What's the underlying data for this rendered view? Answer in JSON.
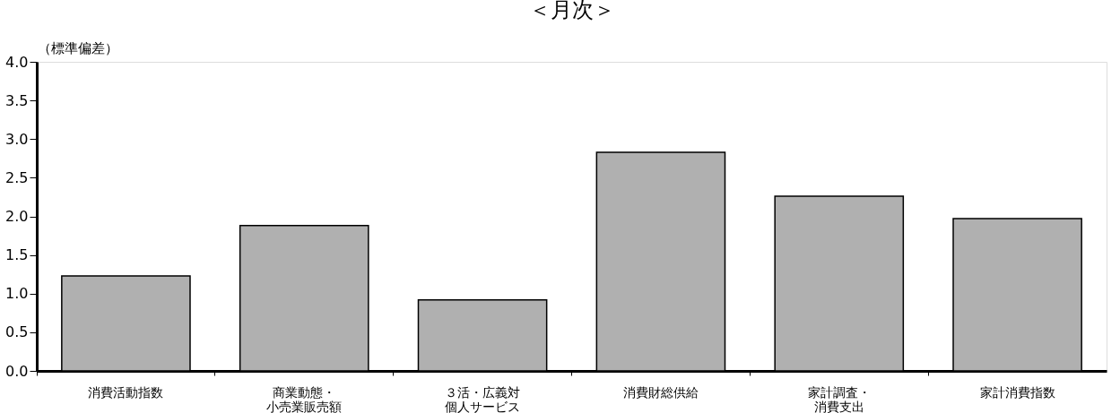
{
  "chart_data": {
    "type": "bar",
    "title": "＜月次＞",
    "ylabel": "（標準偏差）",
    "categories": [
      "消費活動指数",
      "商業動態・小売業販売額",
      "３活・広義対個人サービス",
      "消費財総供給",
      "家計調査・消費支出",
      "家計消費指数"
    ],
    "values": [
      1.23,
      1.88,
      0.92,
      2.83,
      2.26,
      1.97
    ],
    "color": "#b0b0b0",
    "ylim": [
      0,
      4.0
    ],
    "yticks": [
      {
        "value": 0,
        "label": "0.0"
      },
      {
        "value": 0.5,
        "label": "0.5"
      },
      {
        "value": 1,
        "label": "1.0"
      },
      {
        "value": 1.5,
        "label": "1.5"
      },
      {
        "value": 2,
        "label": "2.0"
      },
      {
        "value": 2.5,
        "label": "2.5"
      },
      {
        "value": 3,
        "label": "3.0"
      },
      {
        "value": 3.5,
        "label": "3.5"
      },
      {
        "value": 4,
        "label": "4.0"
      }
    ],
    "grid": false
  }
}
